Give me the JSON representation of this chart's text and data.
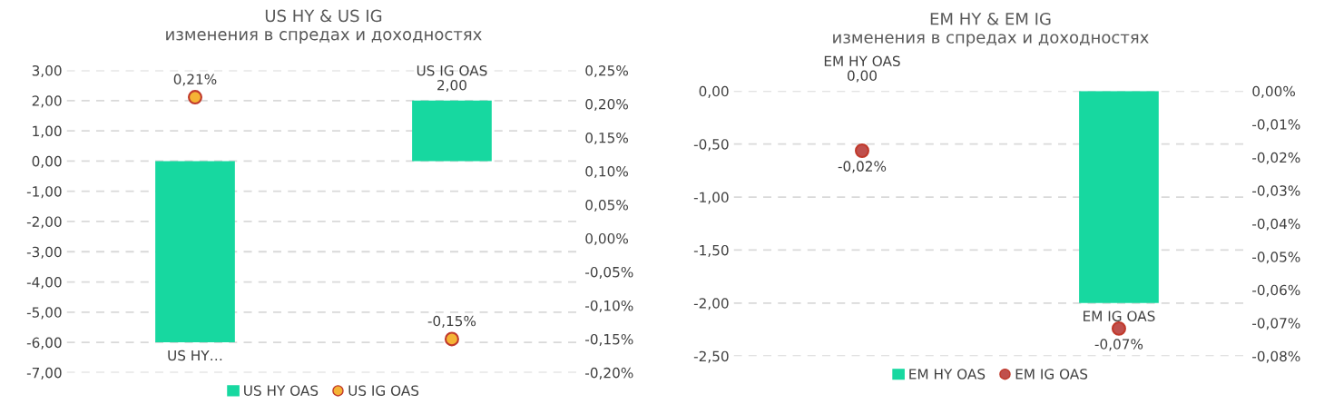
{
  "chart_data": [
    {
      "type": "bar",
      "title": "US HY & US IG",
      "subtitle": "изменения в спредах и доходностях",
      "categories": [
        null,
        null
      ],
      "series": [
        {
          "name": "US HY OAS",
          "color": "#17d8a0",
          "values": [
            -6.0,
            2.0
          ],
          "value_labels": [
            "US HY…",
            "US IG OAS\n2,00"
          ]
        },
        {
          "name": "US IG OAS",
          "type": "scatter",
          "axis": "y2",
          "color": "#f5b335",
          "values": [
            0.21,
            -0.15
          ],
          "value_labels": [
            "0,21%",
            "-0,15%"
          ]
        }
      ],
      "ylim": [
        -7,
        3
      ],
      "yticks": [
        {
          "value": -7,
          "label": "-7,00"
        },
        {
          "value": -6,
          "label": "-6,00"
        },
        {
          "value": -5,
          "label": "-5,00"
        },
        {
          "value": -4,
          "label": "-4,00"
        },
        {
          "value": -3,
          "label": "-3,00"
        },
        {
          "value": -2,
          "label": "-2,00"
        },
        {
          "value": -1,
          "label": "-1,00"
        },
        {
          "value": 0,
          "label": "0,00"
        },
        {
          "value": 1,
          "label": "1,00"
        },
        {
          "value": 2,
          "label": "2,00"
        },
        {
          "value": 3,
          "label": "3,00"
        }
      ],
      "y2lim": [
        -0.2,
        0.25
      ],
      "y2ticks": [
        {
          "value": -0.2,
          "label": "-0,20%"
        },
        {
          "value": -0.15,
          "label": "-0,15%"
        },
        {
          "value": -0.1,
          "label": "-0,10%"
        },
        {
          "value": -0.05,
          "label": "-0,05%"
        },
        {
          "value": 0,
          "label": "0,00%"
        },
        {
          "value": 0.05,
          "label": "0,05%"
        },
        {
          "value": 0.1,
          "label": "0,10%"
        },
        {
          "value": 0.15,
          "label": "0,15%"
        },
        {
          "value": 0.2,
          "label": "0,20%"
        },
        {
          "value": 0.25,
          "label": "0,25%"
        }
      ],
      "grid": "y",
      "legend": "bottom",
      "marker": "circle"
    },
    {
      "type": "bar",
      "title": "EM HY & EM IG",
      "subtitle": "изменения в спредах и доходностях",
      "categories": [
        null,
        null
      ],
      "series": [
        {
          "name": "EM HY OAS",
          "color": "#17d8a0",
          "values": [
            0.0,
            -2.0
          ],
          "value_labels": [
            "EM HY OAS\n0,00",
            "EM IG OAS"
          ]
        },
        {
          "name": "EM IG OAS",
          "type": "scatter",
          "axis": "y2",
          "color": "#c0504d",
          "values": [
            -0.018,
            -0.0717
          ],
          "value_labels": [
            "-0,02%",
            "-0,07%"
          ]
        }
      ],
      "ylim": [
        -2.5,
        0
      ],
      "yticks": [
        {
          "value": -2.5,
          "label": "-2,50"
        },
        {
          "value": -2,
          "label": "-2,00"
        },
        {
          "value": -1.5,
          "label": "-1,50"
        },
        {
          "value": -1,
          "label": "-1,00"
        },
        {
          "value": -0.5,
          "label": "-0,50"
        },
        {
          "value": 0,
          "label": "0,00"
        }
      ],
      "y2lim": [
        -0.08,
        0
      ],
      "y2ticks": [
        {
          "value": -0.08,
          "label": "-0,08%"
        },
        {
          "value": -0.07,
          "label": "-0,07%"
        },
        {
          "value": -0.06,
          "label": "-0,06%"
        },
        {
          "value": -0.05,
          "label": "-0,05%"
        },
        {
          "value": -0.04,
          "label": "-0,04%"
        },
        {
          "value": -0.03,
          "label": "-0,03%"
        },
        {
          "value": -0.02,
          "label": "-0,02%"
        },
        {
          "value": -0.01,
          "label": "-0,01%"
        },
        {
          "value": 0,
          "label": "0,00%"
        }
      ],
      "grid": "y",
      "legend": "bottom",
      "marker": "circle"
    }
  ]
}
